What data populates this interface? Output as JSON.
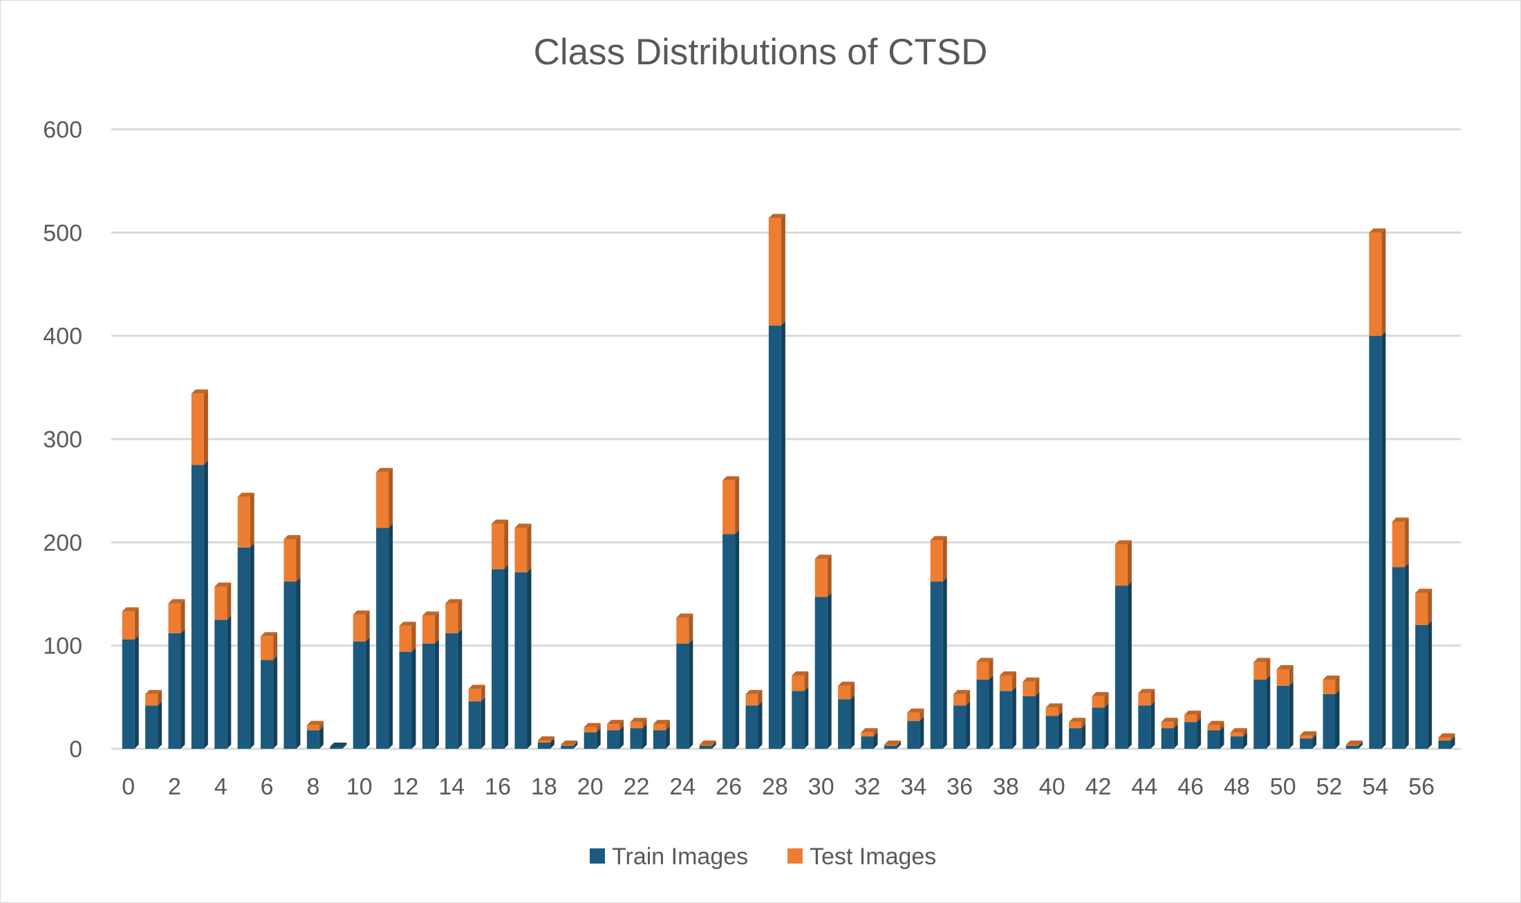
{
  "chart_data": {
    "type": "bar",
    "stacked": true,
    "title": "Class Distributions of CTSD",
    "xlabel": "",
    "ylabel": "",
    "ylim": [
      0,
      600
    ],
    "yticks": [
      "0",
      "100",
      "200",
      "300",
      "400",
      "500",
      "600"
    ],
    "grid": true,
    "legend_position": "bottom",
    "categories": [
      "0",
      "1",
      "2",
      "3",
      "4",
      "5",
      "6",
      "7",
      "8",
      "9",
      "10",
      "11",
      "12",
      "13",
      "14",
      "15",
      "16",
      "17",
      "18",
      "19",
      "20",
      "21",
      "22",
      "23",
      "24",
      "25",
      "26",
      "27",
      "28",
      "29",
      "30",
      "31",
      "32",
      "33",
      "34",
      "35",
      "36",
      "37",
      "38",
      "39",
      "40",
      "41",
      "42",
      "43",
      "44",
      "45",
      "46",
      "47",
      "48",
      "49",
      "50",
      "51",
      "52",
      "53",
      "54",
      "55",
      "56",
      "57"
    ],
    "xtick_labels": [
      "0",
      "2",
      "4",
      "6",
      "8",
      "10",
      "12",
      "14",
      "16",
      "18",
      "20",
      "22",
      "24",
      "26",
      "28",
      "30",
      "32",
      "34",
      "36",
      "38",
      "40",
      "42",
      "44",
      "46",
      "48",
      "50",
      "52",
      "54",
      "56"
    ],
    "series": [
      {
        "name": "Train Images",
        "color": "#1b5a7e",
        "values": [
          106,
          42,
          112,
          275,
          125,
          195,
          86,
          162,
          18,
          2,
          104,
          214,
          94,
          102,
          112,
          46,
          174,
          171,
          6,
          3,
          16,
          18,
          20,
          18,
          102,
          3,
          208,
          42,
          410,
          56,
          147,
          48,
          12,
          3,
          27,
          162,
          42,
          67,
          56,
          51,
          32,
          20,
          40,
          158,
          42,
          20,
          26,
          18,
          12,
          67,
          61,
          10,
          53,
          3,
          400,
          176,
          120,
          8
        ]
      },
      {
        "name": "Test Images",
        "color": "#ed7d31",
        "values": [
          27,
          11,
          29,
          69,
          32,
          49,
          23,
          41,
          5,
          0,
          26,
          54,
          25,
          27,
          29,
          12,
          44,
          43,
          2,
          1,
          5,
          6,
          6,
          6,
          25,
          1,
          52,
          11,
          104,
          15,
          37,
          13,
          4,
          1,
          8,
          40,
          11,
          17,
          15,
          14,
          8,
          6,
          11,
          40,
          12,
          6,
          7,
          5,
          4,
          17,
          16,
          3,
          14,
          1,
          100,
          44,
          31,
          3
        ]
      }
    ]
  }
}
